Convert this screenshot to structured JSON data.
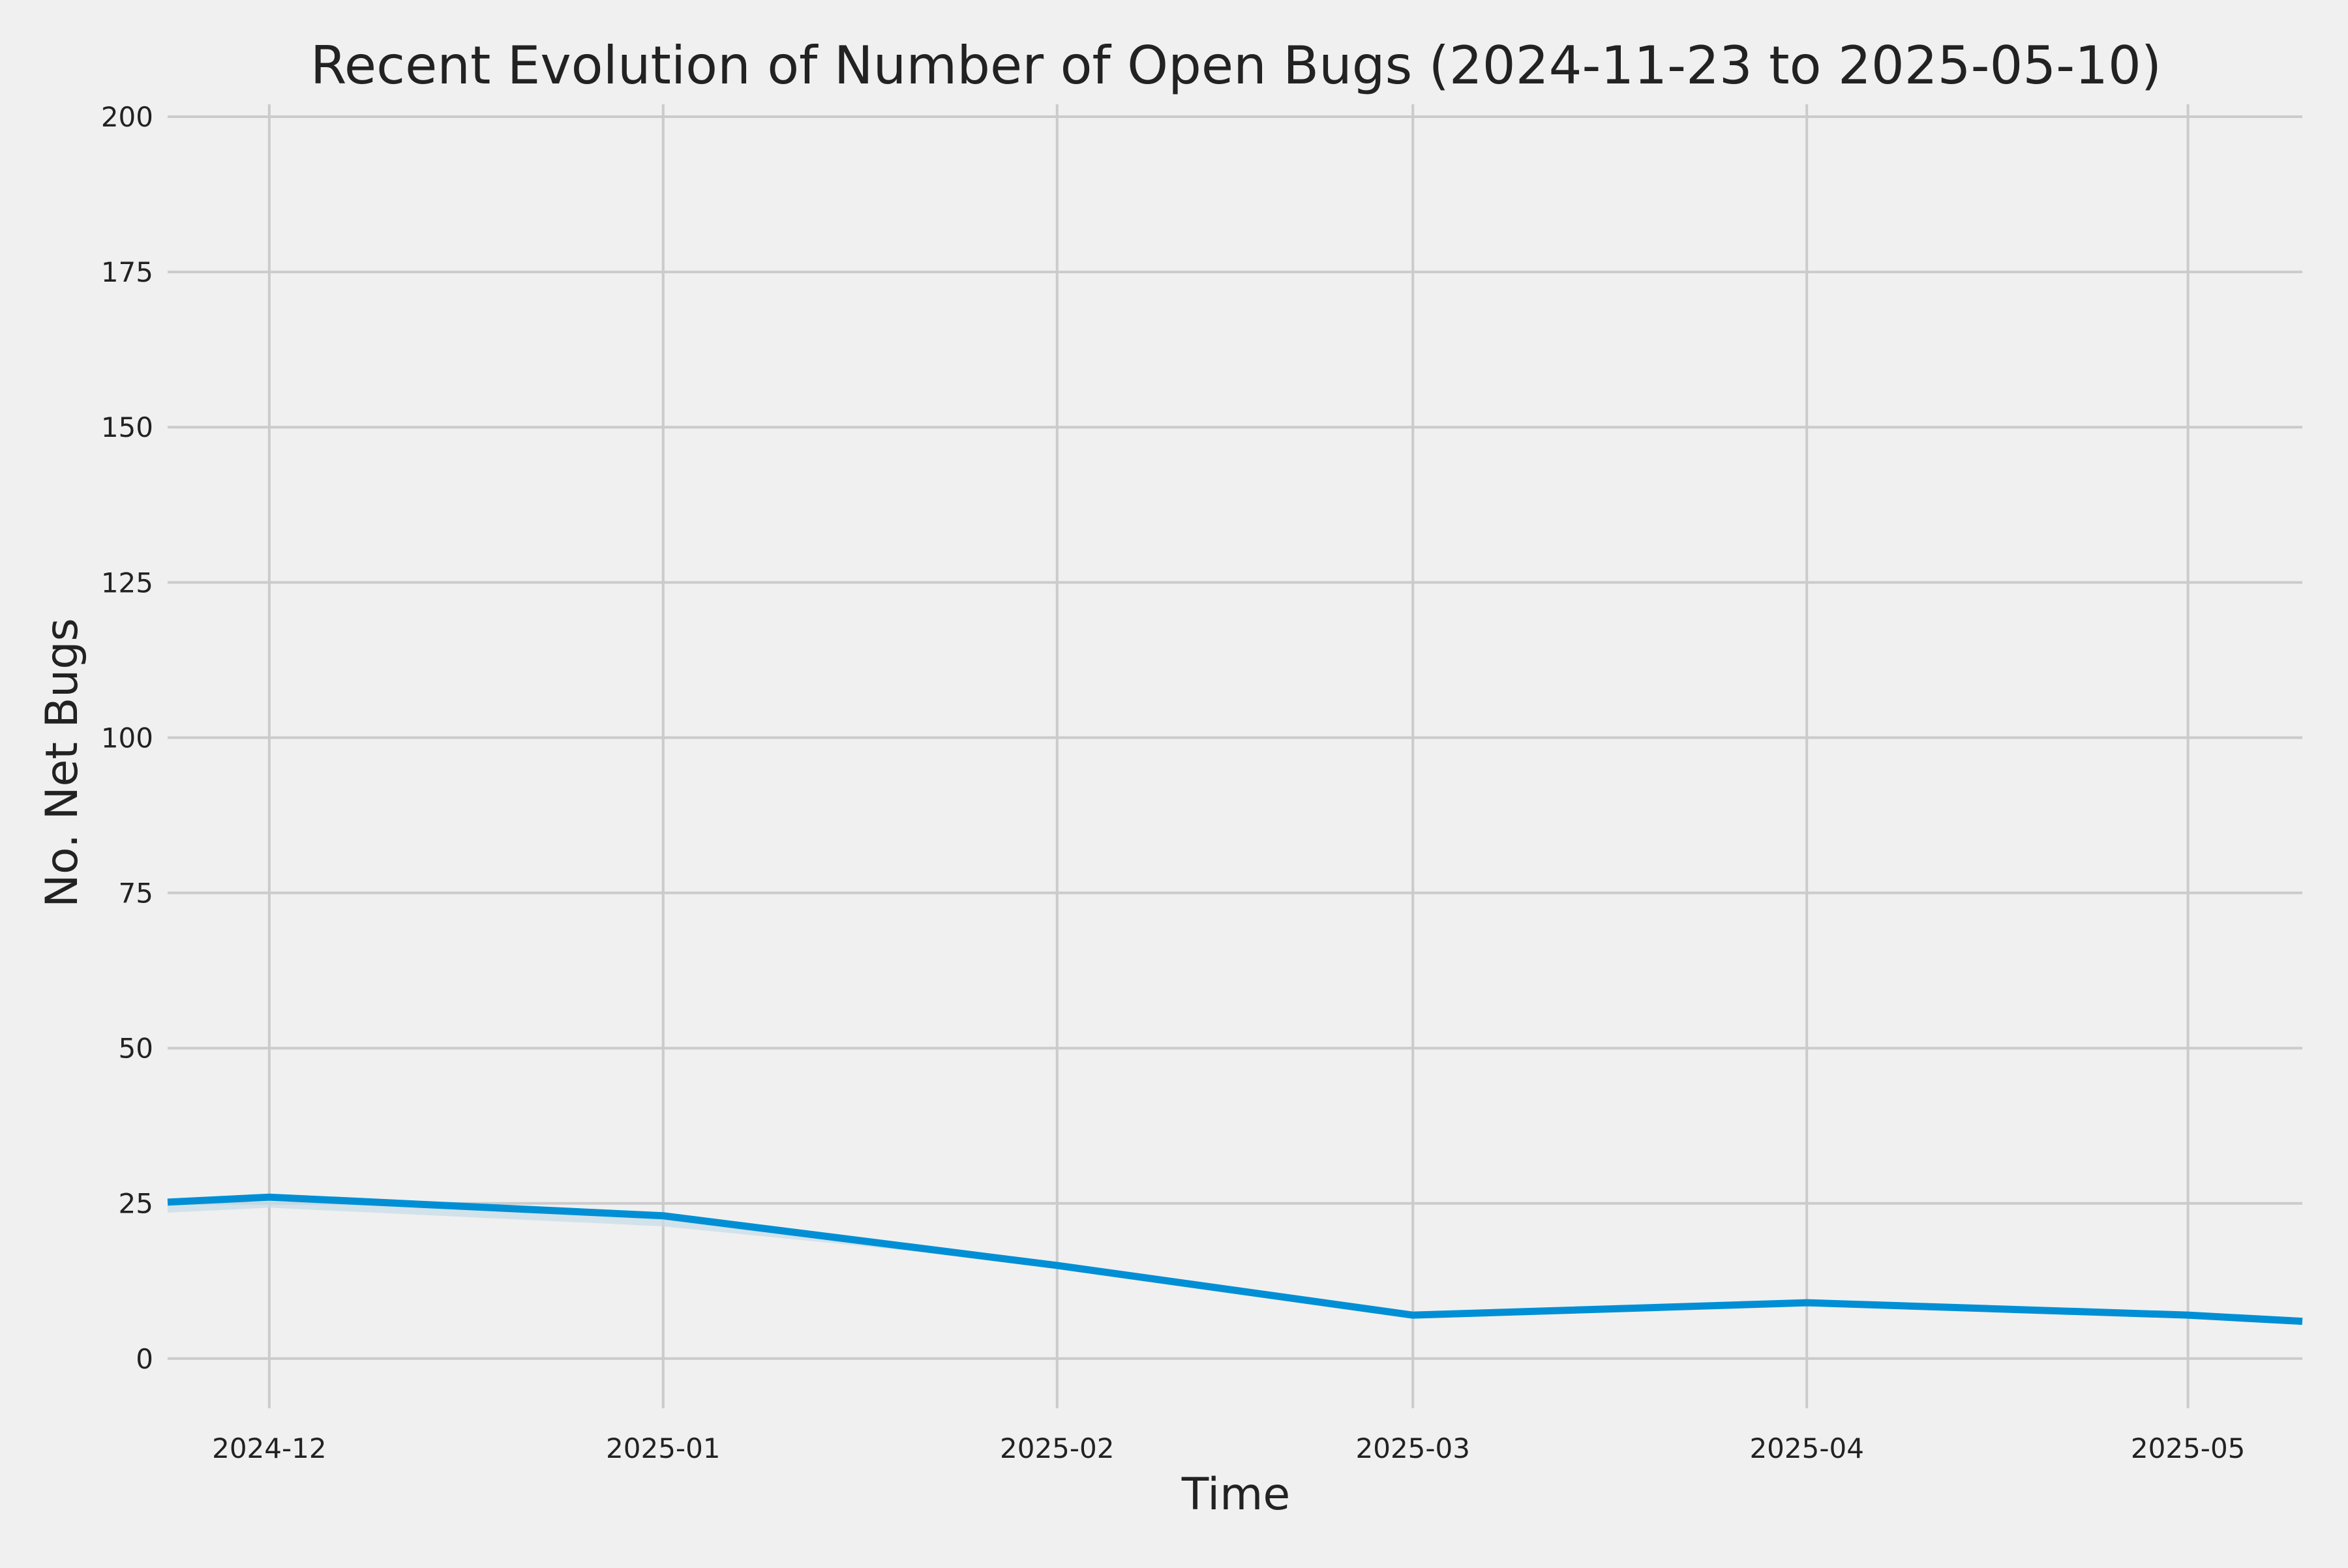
{
  "chart_data": {
    "type": "line",
    "title": "Recent Evolution of Number of Open Bugs (2024-11-23 to 2025-05-10)",
    "xlabel": "Time",
    "ylabel": "No. Net Bugs",
    "xlim": [
      "2024-11-23",
      "2025-05-10"
    ],
    "ylim": [
      -8,
      202
    ],
    "x_ticks": [
      {
        "date": "2024-12-01",
        "label": "2024-12"
      },
      {
        "date": "2025-01-01",
        "label": "2025-01"
      },
      {
        "date": "2025-02-01",
        "label": "2025-02"
      },
      {
        "date": "2025-03-01",
        "label": "2025-03"
      },
      {
        "date": "2025-04-01",
        "label": "2025-04"
      },
      {
        "date": "2025-05-01",
        "label": "2025-05"
      }
    ],
    "y_ticks": [
      0,
      25,
      50,
      75,
      100,
      125,
      150,
      175,
      200
    ],
    "grid": true,
    "colors": {
      "background": "#f0f0f0",
      "series": "#008fd5",
      "band": "#c5dbe8",
      "grid": "#cbcbcb",
      "text": "#222222"
    },
    "series": [
      {
        "x": [
          "2024-11-23",
          "2024-12-01",
          "2025-01-01",
          "2025-02-01",
          "2025-03-01",
          "2025-04-01",
          "2025-05-01",
          "2025-05-10"
        ],
        "y": [
          25.2,
          26,
          23,
          15,
          7,
          9,
          7,
          6
        ]
      }
    ],
    "band": {
      "x": [
        "2024-11-23",
        "2024-12-01",
        "2025-01-01",
        "2025-02-01"
      ],
      "lower": [
        23.5,
        24.3,
        21.3,
        15
      ],
      "upper": [
        25.2,
        26,
        23,
        15
      ]
    }
  }
}
